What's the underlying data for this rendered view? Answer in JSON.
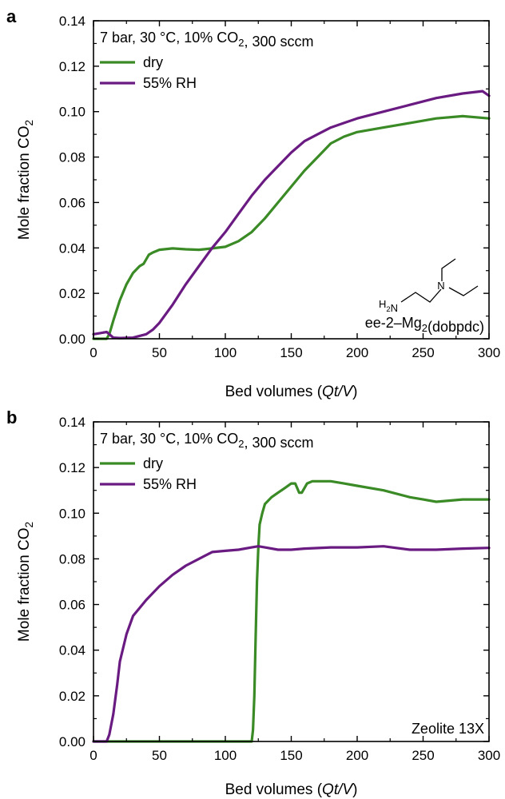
{
  "chart_data": [
    {
      "panel": "a",
      "type": "line",
      "xlabel": "Bed volumes (Qt/V)",
      "ylabel": "Mole fraction CO2",
      "xlim": [
        0,
        300
      ],
      "ylim": [
        0,
        0.14
      ],
      "x_ticks": [
        "0",
        "50",
        "100",
        "150",
        "200",
        "250",
        "300"
      ],
      "y_ticks": [
        "0.00",
        "0.02",
        "0.04",
        "0.06",
        "0.08",
        "0.10",
        "0.12",
        "0.14"
      ],
      "conditions": "7 bar, 30 °C, 10% CO2, 300 sccm",
      "material_label": "ee-2–Mg2(dobpdc)",
      "structure_label": "H2N",
      "structure_atom": "N",
      "legend": "top-left",
      "grid": false,
      "series": [
        {
          "name": "dry",
          "color": "#3a8a26",
          "x": [
            0,
            10,
            12,
            15,
            20,
            25,
            30,
            35,
            38,
            40,
            42,
            45,
            50,
            60,
            70,
            80,
            90,
            100,
            110,
            120,
            130,
            140,
            150,
            160,
            170,
            180,
            190,
            200,
            220,
            240,
            250,
            260,
            280,
            300
          ],
          "y": [
            0.0,
            0.0,
            0.002,
            0.008,
            0.017,
            0.024,
            0.029,
            0.032,
            0.033,
            0.035,
            0.037,
            0.038,
            0.0392,
            0.0398,
            0.0394,
            0.0392,
            0.0398,
            0.0405,
            0.043,
            0.047,
            0.053,
            0.06,
            0.067,
            0.074,
            0.08,
            0.086,
            0.089,
            0.091,
            0.093,
            0.095,
            0.096,
            0.097,
            0.098,
            0.097
          ]
        },
        {
          "name": "55% RH",
          "color": "#6a1b82",
          "x": [
            0,
            5,
            10,
            12,
            15,
            20,
            30,
            40,
            45,
            50,
            60,
            70,
            80,
            90,
            100,
            110,
            120,
            130,
            140,
            150,
            160,
            170,
            180,
            190,
            200,
            220,
            240,
            260,
            280,
            295,
            300
          ],
          "y": [
            0.002,
            0.0025,
            0.003,
            0.002,
            0.0005,
            0.0003,
            0.0005,
            0.002,
            0.004,
            0.007,
            0.015,
            0.024,
            0.032,
            0.04,
            0.047,
            0.055,
            0.063,
            0.07,
            0.076,
            0.082,
            0.087,
            0.09,
            0.093,
            0.095,
            0.097,
            0.1,
            0.103,
            0.106,
            0.108,
            0.109,
            0.107
          ]
        }
      ]
    },
    {
      "panel": "b",
      "type": "line",
      "xlabel": "Bed volumes (Qt/V)",
      "ylabel": "Mole fraction CO2",
      "xlim": [
        0,
        300
      ],
      "ylim": [
        0,
        0.14
      ],
      "x_ticks": [
        "0",
        "50",
        "100",
        "150",
        "200",
        "250",
        "300"
      ],
      "y_ticks": [
        "0.00",
        "0.02",
        "0.04",
        "0.06",
        "0.08",
        "0.10",
        "0.12",
        "0.14"
      ],
      "conditions": "7 bar, 30 °C, 10% CO2, 300 sccm",
      "material_label": "Zeolite 13X",
      "legend": "top-left",
      "grid": false,
      "series": [
        {
          "name": "dry",
          "color": "#3a8a26",
          "x": [
            0,
            100,
            120,
            121,
            122,
            123,
            124,
            125,
            126,
            128,
            130,
            135,
            140,
            145,
            150,
            153,
            156,
            158,
            162,
            166,
            170,
            180,
            190,
            200,
            220,
            240,
            250,
            260,
            280,
            300
          ],
          "y": [
            0.0,
            0.0,
            0.0,
            0.005,
            0.02,
            0.045,
            0.07,
            0.085,
            0.095,
            0.1,
            0.104,
            0.107,
            0.109,
            0.111,
            0.113,
            0.113,
            0.109,
            0.109,
            0.113,
            0.114,
            0.114,
            0.114,
            0.113,
            0.112,
            0.11,
            0.107,
            0.106,
            0.105,
            0.106,
            0.106
          ]
        },
        {
          "name": "55% RH",
          "color": "#6a1b82",
          "x": [
            0,
            10,
            12,
            15,
            18,
            20,
            25,
            30,
            40,
            50,
            60,
            70,
            80,
            90,
            100,
            110,
            120,
            125,
            130,
            140,
            150,
            160,
            180,
            200,
            220,
            240,
            260,
            280,
            300
          ],
          "y": [
            0.0,
            0.0,
            0.003,
            0.012,
            0.025,
            0.035,
            0.047,
            0.055,
            0.062,
            0.068,
            0.073,
            0.077,
            0.08,
            0.083,
            0.0835,
            0.084,
            0.085,
            0.0855,
            0.085,
            0.084,
            0.084,
            0.0845,
            0.085,
            0.085,
            0.0855,
            0.084,
            0.084,
            0.0845,
            0.0848
          ]
        }
      ]
    }
  ]
}
